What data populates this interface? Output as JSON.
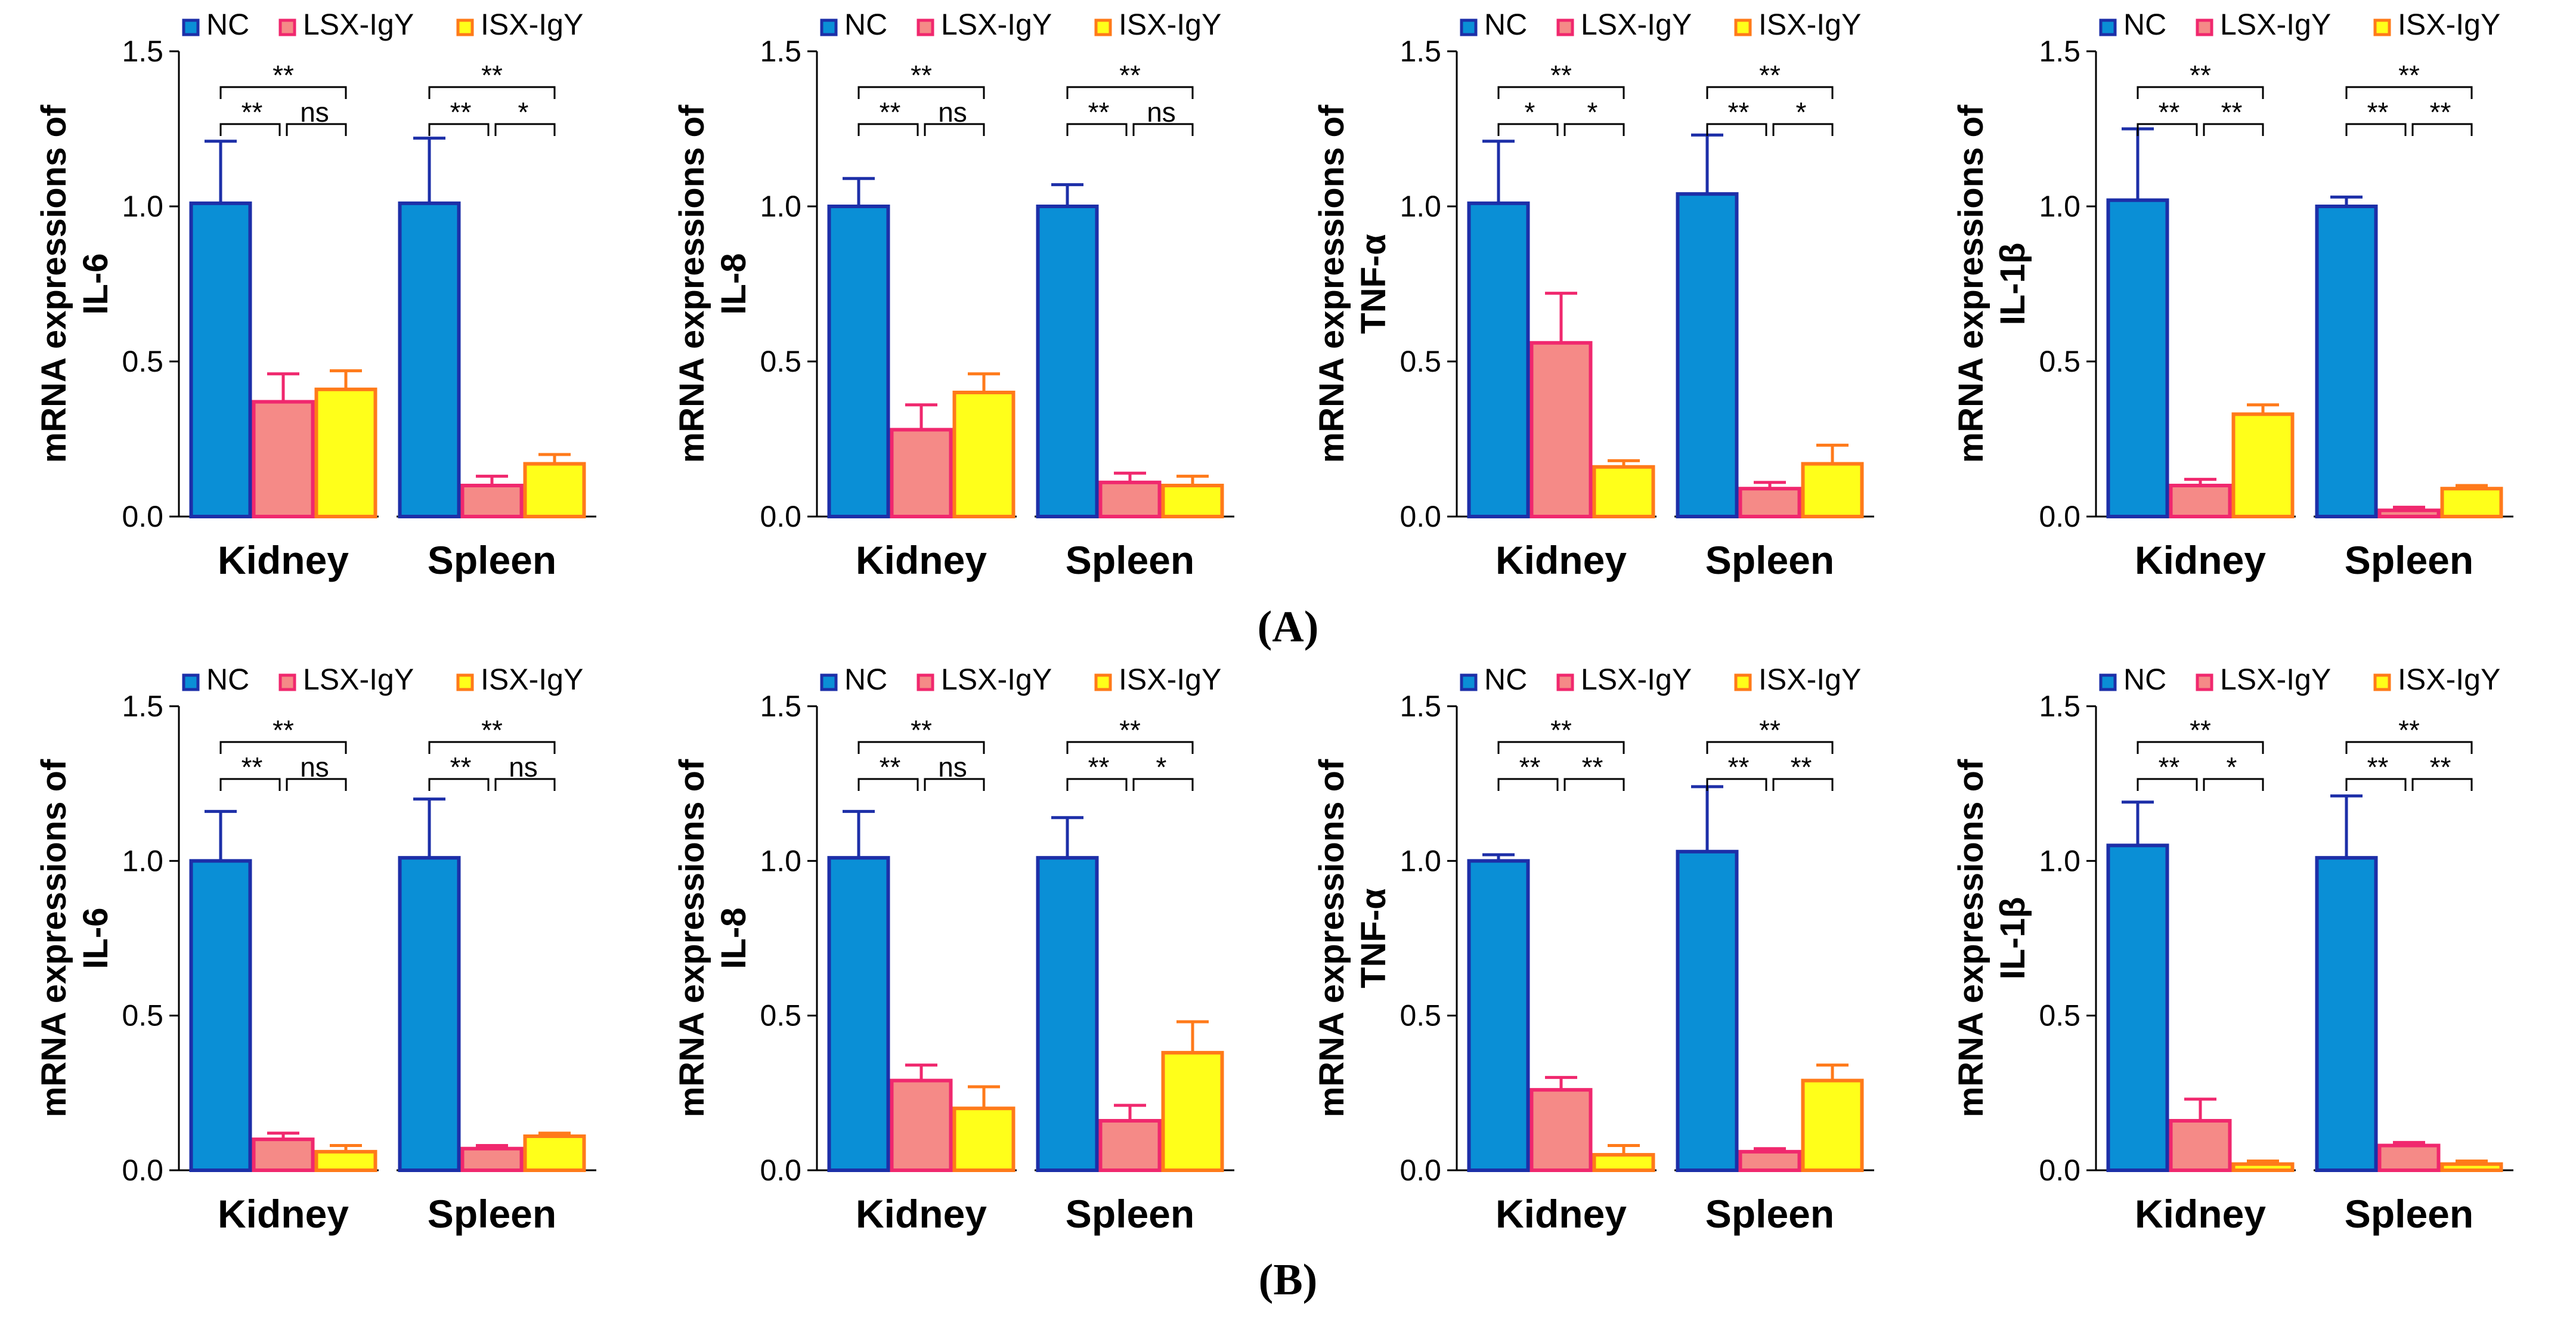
{
  "colors": {
    "NC": {
      "fill": "#0a8fd6",
      "stroke": "#1d2fa8"
    },
    "LSX-IgY": {
      "fill": "#f58a87",
      "stroke": "#f0286e"
    },
    "ISX-IgY": {
      "fill": "#ffff1a",
      "stroke": "#ff7a1a"
    }
  },
  "figure_labels": [
    "(A)",
    "(B)"
  ],
  "chart_data": [
    {
      "type": "bar",
      "panel": "A",
      "ylabel_line1": "mRNA expressions of",
      "ylabel_line2": "IL-6",
      "categories": [
        "Kidney",
        "Spleen"
      ],
      "legend": [
        "NC",
        "LSX-IgY",
        "ISX-IgY"
      ],
      "ylim": [
        0,
        1.5
      ],
      "yticks": [
        "0.0",
        "0.5",
        "1.0",
        "1.5"
      ],
      "series": [
        {
          "name": "NC",
          "values": [
            1.01,
            1.01
          ],
          "errors": [
            0.2,
            0.21
          ]
        },
        {
          "name": "LSX-IgY",
          "values": [
            0.37,
            0.1
          ],
          "errors": [
            0.09,
            0.03
          ]
        },
        {
          "name": "ISX-IgY",
          "values": [
            0.41,
            0.17
          ],
          "errors": [
            0.06,
            0.03
          ]
        }
      ],
      "significance": [
        {
          "top": "**",
          "left": "**",
          "right": "ns"
        },
        {
          "top": "**",
          "left": "**",
          "right": "*"
        }
      ]
    },
    {
      "type": "bar",
      "panel": "A",
      "ylabel_line1": "mRNA expressions of",
      "ylabel_line2": "IL-8",
      "categories": [
        "Kidney",
        "Spleen"
      ],
      "legend": [
        "NC",
        "LSX-IgY",
        "ISX-IgY"
      ],
      "ylim": [
        0,
        1.5
      ],
      "yticks": [
        "0.0",
        "0.5",
        "1.0",
        "1.5"
      ],
      "series": [
        {
          "name": "NC",
          "values": [
            1.0,
            1.0
          ],
          "errors": [
            0.09,
            0.07
          ]
        },
        {
          "name": "LSX-IgY",
          "values": [
            0.28,
            0.11
          ],
          "errors": [
            0.08,
            0.03
          ]
        },
        {
          "name": "ISX-IgY",
          "values": [
            0.4,
            0.1
          ],
          "errors": [
            0.06,
            0.03
          ]
        }
      ],
      "significance": [
        {
          "top": "**",
          "left": "**",
          "right": "ns"
        },
        {
          "top": "**",
          "left": "**",
          "right": "ns"
        }
      ]
    },
    {
      "type": "bar",
      "panel": "A",
      "ylabel_line1": "mRNA expressions of",
      "ylabel_line2": "TNF-α",
      "categories": [
        "Kidney",
        "Spleen"
      ],
      "legend": [
        "NC",
        "LSX-IgY",
        "ISX-IgY"
      ],
      "ylim": [
        0,
        1.5
      ],
      "yticks": [
        "0.0",
        "0.5",
        "1.0",
        "1.5"
      ],
      "series": [
        {
          "name": "NC",
          "values": [
            1.01,
            1.04
          ],
          "errors": [
            0.2,
            0.19
          ]
        },
        {
          "name": "LSX-IgY",
          "values": [
            0.56,
            0.09
          ],
          "errors": [
            0.16,
            0.02
          ]
        },
        {
          "name": "ISX-IgY",
          "values": [
            0.16,
            0.17
          ],
          "errors": [
            0.02,
            0.06
          ]
        }
      ],
      "significance": [
        {
          "top": "**",
          "left": "*",
          "right": "*"
        },
        {
          "top": "**",
          "left": "**",
          "right": "*"
        }
      ]
    },
    {
      "type": "bar",
      "panel": "A",
      "ylabel_line1": "mRNA expressions of",
      "ylabel_line2": "IL-1β",
      "categories": [
        "Kidney",
        "Spleen"
      ],
      "legend": [
        "NC",
        "LSX-IgY",
        "ISX-IgY"
      ],
      "ylim": [
        0,
        1.5
      ],
      "yticks": [
        "0.0",
        "0.5",
        "1.0",
        "1.5"
      ],
      "series": [
        {
          "name": "NC",
          "values": [
            1.02,
            1.0
          ],
          "errors": [
            0.23,
            0.03
          ]
        },
        {
          "name": "LSX-IgY",
          "values": [
            0.1,
            0.02
          ],
          "errors": [
            0.02,
            0.01
          ]
        },
        {
          "name": "ISX-IgY",
          "values": [
            0.33,
            0.09
          ],
          "errors": [
            0.03,
            0.01
          ]
        }
      ],
      "significance": [
        {
          "top": "**",
          "left": "**",
          "right": "**"
        },
        {
          "top": "**",
          "left": "**",
          "right": "**"
        }
      ]
    },
    {
      "type": "bar",
      "panel": "B",
      "ylabel_line1": "mRNA expressions of",
      "ylabel_line2": "IL-6",
      "categories": [
        "Kidney",
        "Spleen"
      ],
      "legend": [
        "NC",
        "LSX-IgY",
        "ISX-IgY"
      ],
      "ylim": [
        0,
        1.5
      ],
      "yticks": [
        "0.0",
        "0.5",
        "1.0",
        "1.5"
      ],
      "series": [
        {
          "name": "NC",
          "values": [
            1.0,
            1.01
          ],
          "errors": [
            0.16,
            0.19
          ]
        },
        {
          "name": "LSX-IgY",
          "values": [
            0.1,
            0.07
          ],
          "errors": [
            0.02,
            0.01
          ]
        },
        {
          "name": "ISX-IgY",
          "values": [
            0.06,
            0.11
          ],
          "errors": [
            0.02,
            0.01
          ]
        }
      ],
      "significance": [
        {
          "top": "**",
          "left": "**",
          "right": "ns"
        },
        {
          "top": "**",
          "left": "**",
          "right": "ns"
        }
      ]
    },
    {
      "type": "bar",
      "panel": "B",
      "ylabel_line1": "mRNA expressions of",
      "ylabel_line2": "IL-8",
      "categories": [
        "Kidney",
        "Spleen"
      ],
      "legend": [
        "NC",
        "LSX-IgY",
        "ISX-IgY"
      ],
      "ylim": [
        0,
        1.5
      ],
      "yticks": [
        "0.0",
        "0.5",
        "1.0",
        "1.5"
      ],
      "series": [
        {
          "name": "NC",
          "values": [
            1.01,
            1.01
          ],
          "errors": [
            0.15,
            0.13
          ]
        },
        {
          "name": "LSX-IgY",
          "values": [
            0.29,
            0.16
          ],
          "errors": [
            0.05,
            0.05
          ]
        },
        {
          "name": "ISX-IgY",
          "values": [
            0.2,
            0.38
          ],
          "errors": [
            0.07,
            0.1
          ]
        }
      ],
      "significance": [
        {
          "top": "**",
          "left": "**",
          "right": "ns"
        },
        {
          "top": "**",
          "left": "**",
          "right": "*"
        }
      ]
    },
    {
      "type": "bar",
      "panel": "B",
      "ylabel_line1": "mRNA expressions of",
      "ylabel_line2": "TNF-α",
      "categories": [
        "Kidney",
        "Spleen"
      ],
      "legend": [
        "NC",
        "LSX-IgY",
        "ISX-IgY"
      ],
      "ylim": [
        0,
        1.5
      ],
      "yticks": [
        "0.0",
        "0.5",
        "1.0",
        "1.5"
      ],
      "series": [
        {
          "name": "NC",
          "values": [
            1.0,
            1.03
          ],
          "errors": [
            0.02,
            0.21
          ]
        },
        {
          "name": "LSX-IgY",
          "values": [
            0.26,
            0.06
          ],
          "errors": [
            0.04,
            0.01
          ]
        },
        {
          "name": "ISX-IgY",
          "values": [
            0.05,
            0.29
          ],
          "errors": [
            0.03,
            0.05
          ]
        }
      ],
      "significance": [
        {
          "top": "**",
          "left": "**",
          "right": "**"
        },
        {
          "top": "**",
          "left": "**",
          "right": "**"
        }
      ]
    },
    {
      "type": "bar",
      "panel": "B",
      "ylabel_line1": "mRNA expressions of",
      "ylabel_line2": "IL-1β",
      "categories": [
        "Kidney",
        "Spleen"
      ],
      "legend": [
        "NC",
        "LSX-IgY",
        "ISX-IgY"
      ],
      "ylim": [
        0,
        1.5
      ],
      "yticks": [
        "0.0",
        "0.5",
        "1.0",
        "1.5"
      ],
      "series": [
        {
          "name": "NC",
          "values": [
            1.05,
            1.01
          ],
          "errors": [
            0.14,
            0.2
          ]
        },
        {
          "name": "LSX-IgY",
          "values": [
            0.16,
            0.08
          ],
          "errors": [
            0.07,
            0.01
          ]
        },
        {
          "name": "ISX-IgY",
          "values": [
            0.02,
            0.02
          ],
          "errors": [
            0.01,
            0.01
          ]
        }
      ],
      "significance": [
        {
          "top": "**",
          "left": "**",
          "right": "*"
        },
        {
          "top": "**",
          "left": "**",
          "right": "**"
        }
      ]
    }
  ]
}
